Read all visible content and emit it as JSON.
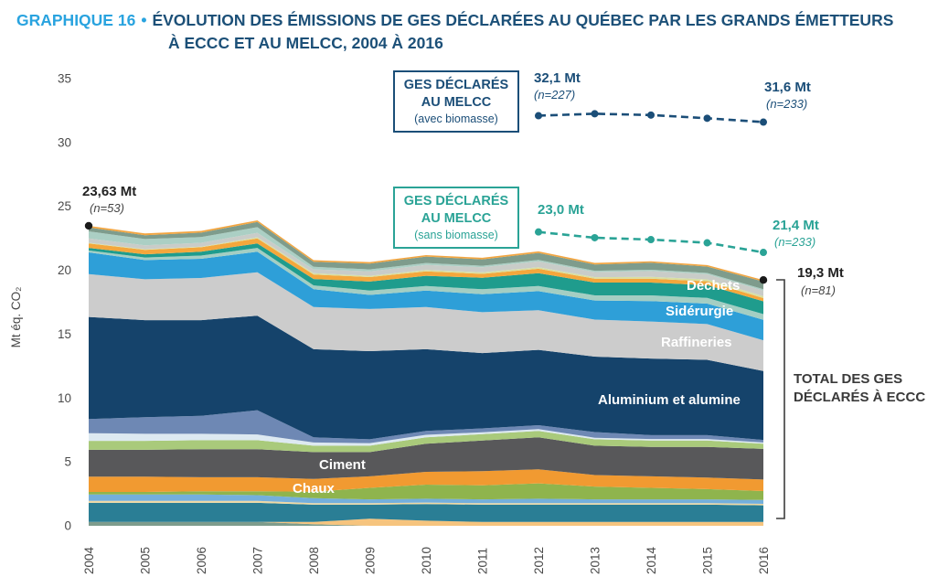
{
  "title": {
    "prefix": "GRAPHIQUE 16",
    "bullet": "•",
    "line1": "ÉVOLUTION DES ÉMISSIONS DE GES DÉCLARÉES AU QUÉBEC PAR LES GRANDS ÉMETTEURS",
    "line2": "À ECCC ET AU MELCC, 2004 À 2016"
  },
  "boxes": {
    "avec": {
      "line1": "GES DÉCLARÉS",
      "line2": "AU MELCC",
      "line3": "(avec biomasse)"
    },
    "sans": {
      "line1": "GES DÉCLARÉS",
      "line2": "AU MELCC",
      "line3": "(sans biomasse)"
    }
  },
  "annotations": {
    "melcc_avec_start": {
      "value": "32,1 Mt",
      "n": "(n=227)"
    },
    "melcc_avec_end": {
      "value": "31,6 Mt",
      "n": "(n=233)"
    },
    "melcc_sans_start": {
      "value": "23,0 Mt"
    },
    "melcc_sans_end": {
      "value": "21,4 Mt",
      "n": "(n=233)"
    },
    "eccc_start": {
      "value": "23,63 Mt",
      "n": "(n=53)"
    },
    "eccc_end": {
      "value": "19,3 Mt",
      "n": "(n=81)"
    },
    "total": {
      "line1": "TOTAL DES GES",
      "line2": "DÉCLARÉS À ECCC"
    }
  },
  "colors": {
    "title_accent": "#29A3DF",
    "title_main": "#1C5078",
    "melcc_avec": "#1B4E78",
    "melcc_sans": "#2AA396",
    "axis_text": "#4A4A4A",
    "bracket": "#3D3D3D"
  },
  "chart_data": {
    "type": "area",
    "title": "Évolution des émissions de GES déclarées au Québec par les grands émetteurs à ECCC et au MELCC, 2004 à 2016",
    "ylabel": "Mt éq. CO₂",
    "xlabel": "",
    "ylim": [
      0,
      35
    ],
    "yticks": [
      0,
      5,
      10,
      15,
      20,
      25,
      30,
      35
    ],
    "grid": false,
    "x": [
      2004,
      2005,
      2006,
      2007,
      2008,
      2009,
      2010,
      2011,
      2012,
      2013,
      2014,
      2015,
      2016
    ],
    "points": {
      "eccc_total": {
        "2004": 23.63,
        "2016": 19.3
      },
      "melcc_avec_biomasse": {
        "2012": 32.1,
        "2016": 31.6
      },
      "melcc_sans_biomasse": {
        "2012": 23.0,
        "2016": 21.4
      },
      "n_counts": {
        "eccc_2004": 53,
        "eccc_2016": 81,
        "melcc_2012": 227,
        "melcc_2016": 233
      }
    },
    "area_labels": {
      "dechets": "Déchets",
      "siderurgie": "Sidérurgie",
      "raffineries": "Raffineries",
      "aluminium": "Aluminium et alumine",
      "ciment": "Ciment",
      "chaux": "Chaux"
    },
    "series": [
      {
        "id": "strip-sage-bottom",
        "label": null,
        "color": "#7E9C8C",
        "values": [
          0.3,
          0.3,
          0.3,
          0.3,
          0.12,
          0,
          0,
          0,
          0,
          0,
          0,
          0,
          0
        ]
      },
      {
        "id": "strip-orange-bottom",
        "label": null,
        "color": "#F6C47E",
        "values": [
          0,
          0,
          0,
          0,
          0.18,
          0.55,
          0.4,
          0.3,
          0.3,
          0.3,
          0.3,
          0.3,
          0.3
        ]
      },
      {
        "id": "layer-teal-bottom",
        "label": null,
        "color": "#2A7E95",
        "values": [
          1.5,
          1.5,
          1.5,
          1.5,
          1.35,
          1.1,
          1.3,
          1.35,
          1.35,
          1.35,
          1.35,
          1.35,
          1.3
        ]
      },
      {
        "id": "layer-cream",
        "label": null,
        "color": "#EFD9A4",
        "values": [
          0.15,
          0.15,
          0.15,
          0.15,
          0.12,
          0.12,
          0.12,
          0.12,
          0.12,
          0.12,
          0.12,
          0.12,
          0.12
        ]
      },
      {
        "id": "layer-light-blue",
        "label": null,
        "color": "#74AFDC",
        "values": [
          0.5,
          0.5,
          0.5,
          0.45,
          0.4,
          0.3,
          0.3,
          0.3,
          0.35,
          0.3,
          0.3,
          0.3,
          0.3
        ]
      },
      {
        "id": "layer-olive-green",
        "label": null,
        "color": "#8FB44D",
        "values": [
          0.2,
          0.2,
          0.25,
          0.3,
          0.5,
          0.9,
          1.1,
          1.1,
          1.2,
          1.0,
          0.9,
          0.8,
          0.7
        ]
      },
      {
        "id": "chaux",
        "label": "Chaux",
        "color": "#F19A31",
        "values": [
          1.2,
          1.2,
          1.1,
          1.1,
          1.0,
          0.9,
          1.0,
          1.1,
          1.1,
          0.9,
          0.9,
          0.9,
          0.9
        ]
      },
      {
        "id": "ciment",
        "label": "Ciment",
        "color": "#58585A",
        "values": [
          2.1,
          2.1,
          2.2,
          2.2,
          2.1,
          1.9,
          2.2,
          2.4,
          2.5,
          2.3,
          2.3,
          2.4,
          2.4
        ]
      },
      {
        "id": "layer-green-mid",
        "label": null,
        "color": "#A9CA7B",
        "values": [
          0.7,
          0.7,
          0.7,
          0.7,
          0.5,
          0.5,
          0.5,
          0.5,
          0.5,
          0.5,
          0.5,
          0.5,
          0.4
        ]
      },
      {
        "id": "layer-pale-dotted",
        "label": null,
        "color": "#DDE9F1",
        "values": [
          0.6,
          0.55,
          0.5,
          0.45,
          0.25,
          0.2,
          0.2,
          0.15,
          0.15,
          0.12,
          0.12,
          0.12,
          0.1
        ]
      },
      {
        "id": "layer-slate-blue",
        "label": null,
        "color": "#6E88B4",
        "values": [
          1.1,
          1.3,
          1.4,
          1.9,
          0.4,
          0.3,
          0.3,
          0.3,
          0.3,
          0.45,
          0.3,
          0.3,
          0.2
        ]
      },
      {
        "id": "aluminium",
        "label": "Aluminium et alumine",
        "color": "#15436B",
        "values": [
          8.0,
          7.6,
          7.5,
          7.4,
          6.9,
          6.9,
          6.4,
          5.9,
          5.9,
          5.9,
          6.0,
          5.9,
          5.4
        ]
      },
      {
        "id": "raffineries",
        "label": "Raffineries",
        "color": "#CCCCCC",
        "values": [
          3.35,
          3.2,
          3.3,
          3.4,
          3.3,
          3.3,
          3.3,
          3.2,
          3.1,
          2.9,
          2.9,
          2.8,
          2.4
        ]
      },
      {
        "id": "siderurgie",
        "label": "Sidérurgie",
        "color": "#2E9FD8",
        "values": [
          1.7,
          1.5,
          1.5,
          1.6,
          1.4,
          1.1,
          1.3,
          1.4,
          1.5,
          1.5,
          1.6,
          1.6,
          1.6
        ]
      },
      {
        "id": "layer-seafoam",
        "label": null,
        "color": "#A4CEC3",
        "values": [
          0.15,
          0.2,
          0.25,
          0.3,
          0.3,
          0.35,
          0.35,
          0.4,
          0.4,
          0.4,
          0.45,
          0.45,
          0.45
        ]
      },
      {
        "id": "dechets",
        "label": "Déchets",
        "color": "#1F9C8D",
        "values": [
          0.2,
          0.25,
          0.3,
          0.35,
          0.5,
          0.7,
          0.8,
          0.9,
          1.0,
          1.0,
          1.0,
          1.0,
          1.0
        ]
      },
      {
        "id": "layer-orange-up",
        "label": null,
        "color": "#F4A73C",
        "values": [
          0.35,
          0.35,
          0.35,
          0.4,
          0.35,
          0.35,
          0.35,
          0.3,
          0.35,
          0.3,
          0.3,
          0.3,
          0.25
        ]
      },
      {
        "id": "layer-yellow-green",
        "label": null,
        "color": "#D8DFA2",
        "values": [
          0.05,
          0.05,
          0.05,
          0.08,
          0.1,
          0.1,
          0.1,
          0.12,
          0.12,
          0.12,
          0.15,
          0.15,
          0.15
        ]
      },
      {
        "id": "layer-gray-up",
        "label": null,
        "color": "#C9CCC8",
        "values": [
          0.35,
          0.3,
          0.3,
          0.35,
          0.3,
          0.35,
          0.4,
          0.4,
          0.45,
          0.4,
          0.45,
          0.4,
          0.45
        ]
      },
      {
        "id": "layer-celadon",
        "label": null,
        "color": "#ABCFC4",
        "values": [
          0.55,
          0.5,
          0.45,
          0.45,
          0.2,
          0.15,
          0.15,
          0.12,
          0.12,
          0.1,
          0.1,
          0.1,
          0.1
        ]
      },
      {
        "id": "layer-sage-up",
        "label": null,
        "color": "#7E9C8C",
        "values": [
          0.3,
          0.3,
          0.35,
          0.4,
          0.4,
          0.45,
          0.5,
          0.5,
          0.55,
          0.5,
          0.55,
          0.5,
          0.6
        ]
      },
      {
        "id": "layer-orange-top",
        "label": null,
        "color": "#F2A540",
        "values": [
          0.13,
          0.13,
          0.13,
          0.13,
          0.12,
          0.12,
          0.12,
          0.12,
          0.12,
          0.12,
          0.12,
          0.12,
          0.12
        ]
      }
    ],
    "lines": [
      {
        "id": "melcc-avec-biomasse",
        "name": "GES déclarés au MELCC (avec biomasse)",
        "color": "#1B4E78",
        "x": [
          2012,
          2013,
          2014,
          2015,
          2016
        ],
        "values": [
          32.1,
          32.25,
          32.15,
          31.9,
          31.6
        ]
      },
      {
        "id": "melcc-sans-biomasse",
        "name": "GES déclarés au MELCC (sans biomasse)",
        "color": "#2AA396",
        "x": [
          2012,
          2013,
          2014,
          2015,
          2016
        ],
        "values": [
          23.0,
          22.55,
          22.4,
          22.15,
          21.4
        ]
      }
    ],
    "legend_position": "none"
  }
}
